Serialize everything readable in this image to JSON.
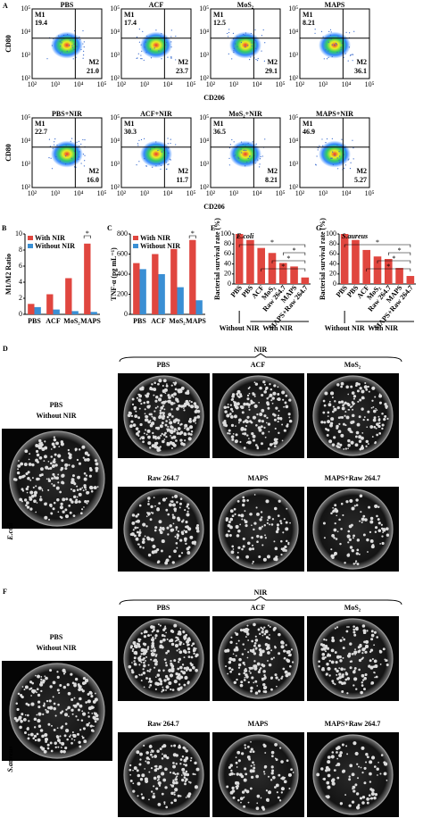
{
  "flow": {
    "label": "A",
    "x_label": "CD206",
    "y_label": "CD80",
    "ticks": [
      "10²",
      "10³",
      "10⁴",
      "10⁵"
    ],
    "gate_labels": [
      "M1",
      "M2"
    ],
    "rows": [
      [
        {
          "title": "PBS",
          "m1": "19.4",
          "m2": "21.0"
        },
        {
          "title": "ACF",
          "m1": "17.4",
          "m2": "23.7"
        },
        {
          "title": "MoS₂",
          "m1": "12.5",
          "m2": "29.1"
        },
        {
          "title": "MAPS",
          "m1": "8.21",
          "m2": "36.1"
        }
      ],
      [
        {
          "title": "PBS+NIR",
          "m1": "22.7",
          "m2": "16.0"
        },
        {
          "title": "ACF+NIR",
          "m1": "30.3",
          "m2": "11.7"
        },
        {
          "title": "MoS₂+NIR",
          "m1": "36.5",
          "m2": "8.21"
        },
        {
          "title": "MAPS+NIR",
          "m1": "46.9",
          "m2": "5.27"
        }
      ]
    ]
  },
  "chart_data": [
    {
      "type": "bar",
      "label": "B",
      "y_label": "M1/M2 Ratio",
      "categories": [
        "PBS",
        "ACF",
        "MoS₂",
        "MAPS"
      ],
      "series": [
        {
          "name": "With NIR",
          "color": "#e0463f",
          "values": [
            1.3,
            2.5,
            4.5,
            8.8
          ]
        },
        {
          "name": "Without NIR",
          "color": "#3a8fd4",
          "values": [
            0.9,
            0.6,
            0.4,
            0.3
          ]
        }
      ],
      "ylim": [
        0,
        10
      ],
      "yticks": [
        0,
        2,
        4,
        6,
        8,
        10
      ],
      "annotations": [
        "*"
      ]
    },
    {
      "type": "bar",
      "label": "C",
      "y_label": "TNF-α (pg mL⁻¹)",
      "categories": [
        "PBS",
        "ACF",
        "MoS₂",
        "MAPS"
      ],
      "series": [
        {
          "name": "With NIR",
          "color": "#e0463f",
          "values": [
            510,
            600,
            650,
            740
          ]
        },
        {
          "name": "Without NIR",
          "color": "#3a8fd4",
          "values": [
            450,
            400,
            270,
            140
          ]
        }
      ],
      "ylim": [
        0,
        800
      ],
      "yticks": [
        0,
        200,
        400,
        600,
        800
      ],
      "annotations": [
        "*"
      ]
    },
    {
      "type": "bar",
      "label": "E",
      "subtitle": "E.coli",
      "y_label": "Bacterial survival rate (%)",
      "categories": [
        "PBS",
        "PBS",
        "ACF",
        "MoS₂",
        "Raw 264.7",
        "MAPS",
        "MAPS+Raw 264.7"
      ],
      "series": [
        {
          "color": "#e0463f",
          "values": [
            100,
            88,
            72,
            62,
            42,
            35,
            13
          ]
        }
      ],
      "ylim": [
        0,
        100
      ],
      "yticks": [
        0,
        20,
        40,
        60,
        80,
        100
      ],
      "group_labels": [
        "Without NIR",
        "With NIR"
      ],
      "annotations": [
        "*",
        "*",
        "*",
        "*"
      ]
    },
    {
      "type": "bar",
      "label": "G",
      "subtitle": "S.aureus",
      "y_label": "Bacterial survival rate (%)",
      "categories": [
        "PBS",
        "PBS",
        "ACF",
        "MoS₂",
        "Raw 264.7",
        "MAPS",
        "MAPS+Raw 264.7"
      ],
      "series": [
        {
          "color": "#e0463f",
          "values": [
            100,
            88,
            68,
            55,
            50,
            32,
            16
          ]
        }
      ],
      "ylim": [
        0,
        100
      ],
      "yticks": [
        0,
        20,
        40,
        60,
        80,
        100
      ],
      "group_labels": [
        "Without NIR",
        "With NIR"
      ],
      "annotations": [
        "*",
        "*",
        "*",
        "*"
      ]
    }
  ],
  "plates": [
    {
      "label": "D",
      "header": "NIR",
      "control": [
        "PBS",
        "Without NIR"
      ],
      "organism": "E.coli",
      "conditions": [
        "PBS",
        "ACF",
        "MoS₂",
        "Raw 264.7",
        "MAPS",
        "MAPS+Raw 264.7"
      ]
    },
    {
      "label": "F",
      "header": "NIR",
      "control": [
        "PBS",
        "Without NIR"
      ],
      "organism": "S.aureus",
      "conditions": [
        "PBS",
        "ACF",
        "MoS₂",
        "Raw 264.7",
        "MAPS",
        "MAPS+Raw 264.7"
      ]
    }
  ]
}
